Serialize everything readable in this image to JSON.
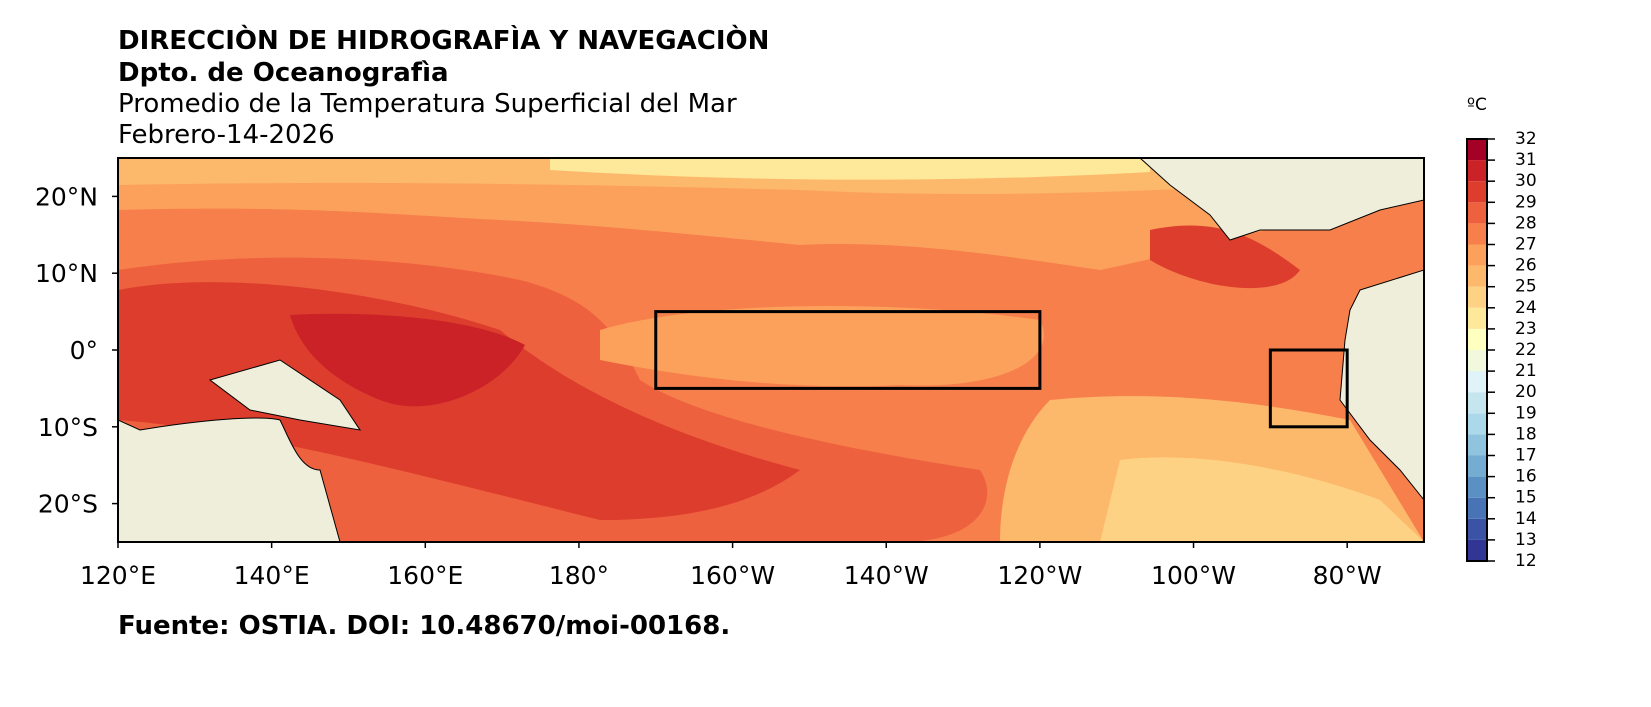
{
  "chart_data": {
    "type": "map",
    "title": "DIRECCIÒN DE HIDROGRAFÌA Y NAVEGACIÒN",
    "subtitle": "Dpto. de Oceanografìa",
    "description": "Promedio de la Temperatura Superficial del Mar",
    "date": "Febrero-14-2026",
    "source": "Fuente: OSTIA. DOI: 10.48670/moi-00168.",
    "xlim": [
      120,
      290
    ],
    "ylim": [
      -25,
      25
    ],
    "xticks": [
      {
        "value": 120,
        "label": "120°E"
      },
      {
        "value": 140,
        "label": "140°E"
      },
      {
        "value": 160,
        "label": "160°E"
      },
      {
        "value": 180,
        "label": "180°"
      },
      {
        "value": 200,
        "label": "160°W"
      },
      {
        "value": 220,
        "label": "140°W"
      },
      {
        "value": 240,
        "label": "120°W"
      },
      {
        "value": 260,
        "label": "100°W"
      },
      {
        "value": 280,
        "label": "80°W"
      }
    ],
    "yticks": [
      {
        "value": -20,
        "label": "20°S"
      },
      {
        "value": -10,
        "label": "10°S"
      },
      {
        "value": 0,
        "label": "0°"
      },
      {
        "value": 10,
        "label": "10°N"
      },
      {
        "value": 20,
        "label": "20°N"
      }
    ],
    "regions": [
      {
        "lon": [
          190,
          240
        ],
        "lat": [
          -5,
          5
        ]
      },
      {
        "lon": [
          270,
          280
        ],
        "lat": [
          -10,
          0
        ]
      }
    ],
    "colorbar": {
      "unit": "ºC",
      "lim": [
        12,
        32
      ],
      "ticks": [
        12,
        13,
        14,
        15,
        16,
        17,
        18,
        19,
        20,
        21,
        22,
        23,
        24,
        25,
        26,
        27,
        28,
        29,
        30,
        31,
        32
      ],
      "colors": [
        "#313695",
        "#3b53a4",
        "#4873b5",
        "#5b90c2",
        "#74add1",
        "#90c3dd",
        "#abd9e9",
        "#c5e5ef",
        "#e0f3f8",
        "#f1f9dc",
        "#ffffbf",
        "#fee89a",
        "#fed284",
        "#fdb96b",
        "#fca15b",
        "#f67f4b",
        "#ee613e",
        "#dd3d2d",
        "#cb2228",
        "#a50026"
      ]
    }
  }
}
